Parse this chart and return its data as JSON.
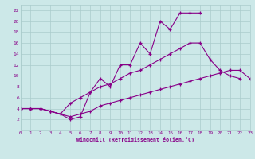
{
  "xlabel": "Windchill (Refroidissement éolien,°C)",
  "background_color": "#cce8e8",
  "line_color": "#880088",
  "grid_color": "#aacccc",
  "xlim": [
    0,
    23
  ],
  "ylim": [
    0,
    23
  ],
  "xticks": [
    0,
    1,
    2,
    3,
    4,
    5,
    6,
    7,
    8,
    9,
    10,
    11,
    12,
    13,
    14,
    15,
    16,
    17,
    18,
    19,
    20,
    21,
    22,
    23
  ],
  "yticks": [
    2,
    4,
    6,
    8,
    10,
    12,
    14,
    16,
    18,
    20,
    22
  ],
  "series": [
    {
      "x": [
        0,
        1,
        2,
        3,
        4,
        5,
        6,
        7,
        8,
        9,
        10,
        11,
        12,
        13,
        14,
        15,
        16,
        17,
        18
      ],
      "y": [
        4,
        4,
        4,
        3.5,
        3,
        2,
        2.5,
        7,
        9.5,
        8,
        12,
        12,
        16,
        14,
        20,
        18.5,
        21.5,
        21.5,
        21.5
      ]
    },
    {
      "x": [
        0,
        1,
        2,
        3,
        4,
        5,
        6,
        7,
        8,
        9,
        10,
        11,
        12,
        13,
        14,
        15,
        16,
        17,
        18,
        19,
        20,
        21,
        22
      ],
      "y": [
        4,
        4,
        4,
        3.5,
        3,
        5,
        6,
        7,
        8,
        8.5,
        9.5,
        10.5,
        11,
        12,
        13,
        14,
        15,
        16,
        16,
        13,
        11,
        10,
        9.5
      ]
    },
    {
      "x": [
        0,
        1,
        2,
        3,
        4,
        5,
        6,
        7,
        8,
        9,
        10,
        11,
        12,
        13,
        14,
        15,
        16,
        17,
        18,
        19,
        20,
        21,
        22,
        23
      ],
      "y": [
        4,
        4,
        4,
        3.5,
        3,
        2.5,
        3,
        3.5,
        4.5,
        5,
        5.5,
        6,
        6.5,
        7,
        7.5,
        8,
        8.5,
        9,
        9.5,
        10,
        10.5,
        11,
        11,
        9.5
      ]
    }
  ]
}
